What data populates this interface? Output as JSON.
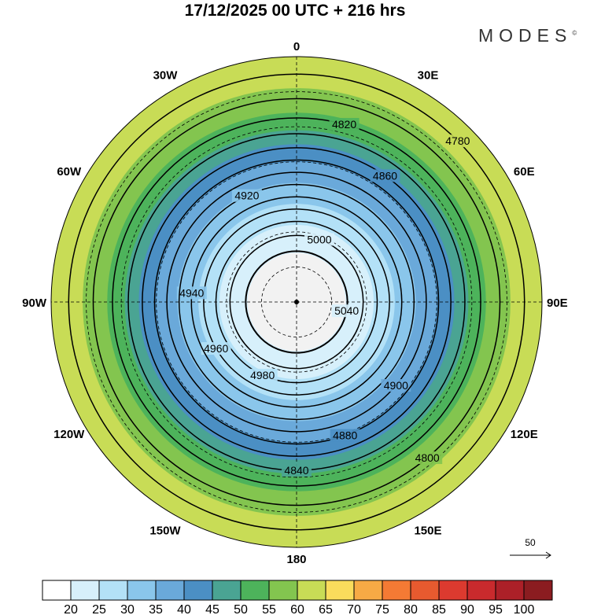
{
  "title": "17/12/2025  00 UTC  + 216 hrs",
  "logo": "MODES",
  "logo_mark": "©",
  "map": {
    "projection": "polar stereographic, Southern Hemisphere",
    "edge_lat": -20,
    "lon_labels": [
      {
        "lon": 0,
        "label": "0"
      },
      {
        "lon": 30,
        "label": "30E"
      },
      {
        "lon": 60,
        "label": "60E"
      },
      {
        "lon": 90,
        "label": "90E"
      },
      {
        "lon": 120,
        "label": "120E"
      },
      {
        "lon": 150,
        "label": "150E"
      },
      {
        "lon": 180,
        "label": "180"
      },
      {
        "lon": 210,
        "label": "150W"
      },
      {
        "lon": 240,
        "label": "120W"
      },
      {
        "lon": 270,
        "label": "90W"
      },
      {
        "lon": 300,
        "label": "60W"
      },
      {
        "lon": 330,
        "label": "30W"
      }
    ],
    "grid_lats": [
      -80,
      -70,
      -60,
      -50,
      -40,
      -30
    ],
    "wind_speed_bands": [
      {
        "min": 0,
        "max": 20,
        "lat_outer": -76
      },
      {
        "min": 20,
        "max": 25,
        "lat_outer": -68
      },
      {
        "min": 25,
        "max": 30,
        "lat_outer": -62
      },
      {
        "min": 30,
        "max": 35,
        "lat_outer": -56
      },
      {
        "min": 35,
        "max": 40,
        "lat_outer": -50
      },
      {
        "min": 40,
        "max": 45,
        "lat_outer": -45
      },
      {
        "min": 45,
        "max": 50,
        "lat_outer": -41
      },
      {
        "min": 50,
        "max": 55,
        "lat_outer": -36
      },
      {
        "min": 55,
        "max": 60,
        "lat_outer": -29
      },
      {
        "min": 60,
        "max": 65,
        "lat_outer": -20
      }
    ],
    "height_contours": [
      {
        "value": 5040,
        "lat": -75.5,
        "label_lon": 100
      },
      {
        "value": 5000,
        "lat": -71,
        "label_lon": 20
      },
      {
        "value": 4980,
        "lat": -67,
        "label_lon": 205
      },
      {
        "value": 4960,
        "lat": -63.5,
        "label_lon": 240
      },
      {
        "value": 4940,
        "lat": -60,
        "label_lon": 275
      },
      {
        "value": 4920,
        "lat": -56.5,
        "label_lon": 335
      },
      {
        "value": 4900,
        "lat": -53,
        "label_lon": 130
      },
      {
        "value": 4880,
        "lat": -49.5,
        "label_lon": 160
      },
      {
        "value": 4860,
        "lat": -46,
        "label_lon": 35
      },
      {
        "value": 4840,
        "lat": -42,
        "label_lon": 180
      },
      {
        "value": 4820,
        "lat": -37.5,
        "label_lon": 15
      },
      {
        "value": 4800,
        "lat": -32,
        "label_lon": 140
      },
      {
        "value": 4780,
        "lat": -25,
        "label_lon": 45
      }
    ],
    "wind_legend": "50"
  },
  "colorbar": {
    "colors": [
      "#ffffff",
      "#d7f0fb",
      "#b3e1f7",
      "#8ac6eb",
      "#6aa9da",
      "#4b8fc4",
      "#4aa493",
      "#4db35b",
      "#83c54f",
      "#c8dc56",
      "#fadc5c",
      "#f7aa45",
      "#f47a34",
      "#e75a2f",
      "#dc3a2f",
      "#c92a2d",
      "#ac2028",
      "#8b1c20"
    ],
    "labels": [
      "20",
      "25",
      "30",
      "35",
      "40",
      "45",
      "50",
      "55",
      "60",
      "65",
      "70",
      "75",
      "80",
      "85",
      "90",
      "95",
      "100"
    ]
  }
}
